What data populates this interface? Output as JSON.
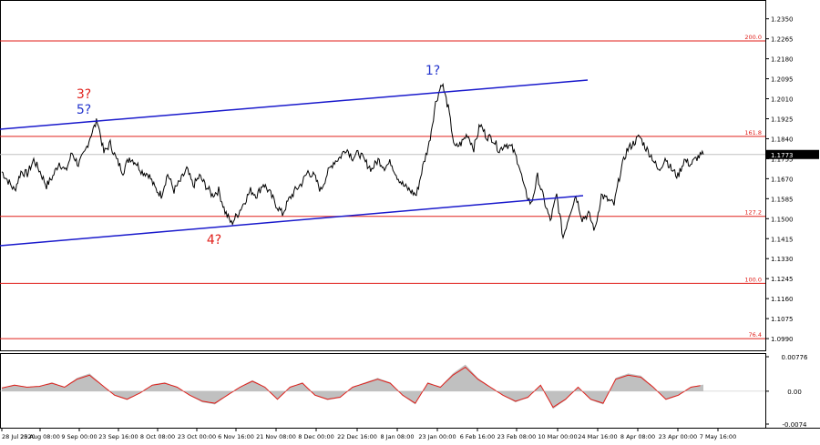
{
  "chart_data": [
    {
      "type": "line",
      "panel": "price",
      "symbol_price": "1.1773",
      "y_ticks": [
        1.235,
        1.2265,
        1.218,
        1.2095,
        1.201,
        1.1925,
        1.184,
        1.1755,
        1.167,
        1.1585,
        1.15,
        1.1415,
        1.133,
        1.1245,
        1.116,
        1.1075,
        1.099
      ],
      "y_tick_labels": [
        "1.2350",
        "1.2265",
        "1.2180",
        "1.2095",
        "1.2010",
        "1.1925",
        "1.1840",
        "1.1755",
        "1.1670",
        "1.1585",
        "1.1500",
        "1.1415",
        "1.1330",
        "1.1245",
        "1.1160",
        "1.1075",
        "1.0990"
      ],
      "ylim": [
        1.094,
        1.243
      ],
      "x_tick_labels": [
        "28 Jul 2020",
        "25 Aug 08:00",
        "9 Sep 00:00",
        "23 Sep 16:00",
        "8 Oct 08:00",
        "23 Oct 00:00",
        "6 Nov 16:00",
        "21 Nov 08:00",
        "8 Dec 00:00",
        "22 Dec 16:00",
        "8 Jan 08:00",
        "23 Jan 00:00",
        "6 Feb 16:00",
        "23 Feb 08:00",
        "10 Mar 00:00",
        "24 Mar 16:00",
        "8 Apr 08:00",
        "23 Apr 00:00",
        "7 May 16:00"
      ],
      "fib_levels": [
        {
          "value": 1.2256,
          "label": "200.0"
        },
        {
          "value": 1.185,
          "label": "161.8"
        },
        {
          "value": 1.151,
          "label": "127.2"
        },
        {
          "value": 1.1225,
          "label": "100.0"
        },
        {
          "value": 1.099,
          "label": "76.4"
        }
      ],
      "price_series": [
        1.17,
        1.166,
        1.162,
        1.17,
        1.169,
        1.175,
        1.17,
        1.164,
        1.168,
        1.174,
        1.17,
        1.178,
        1.173,
        1.178,
        1.186,
        1.192,
        1.178,
        1.182,
        1.175,
        1.17,
        1.176,
        1.174,
        1.17,
        1.169,
        1.163,
        1.16,
        1.169,
        1.162,
        1.166,
        1.171,
        1.164,
        1.168,
        1.164,
        1.16,
        1.162,
        1.153,
        1.148,
        1.152,
        1.157,
        1.162,
        1.16,
        1.165,
        1.161,
        1.156,
        1.152,
        1.158,
        1.162,
        1.165,
        1.17,
        1.168,
        1.162,
        1.169,
        1.174,
        1.176,
        1.18,
        1.176,
        1.178,
        1.174,
        1.171,
        1.175,
        1.172,
        1.174,
        1.168,
        1.164,
        1.162,
        1.16,
        1.172,
        1.182,
        1.199,
        1.208,
        1.197,
        1.18,
        1.182,
        1.186,
        1.18,
        1.19,
        1.185,
        1.184,
        1.179,
        1.182,
        1.18,
        1.174,
        1.162,
        1.156,
        1.168,
        1.158,
        1.149,
        1.16,
        1.142,
        1.152,
        1.16,
        1.15,
        1.152,
        1.145,
        1.16,
        1.158,
        1.156,
        1.17,
        1.179,
        1.182,
        1.185,
        1.18,
        1.176,
        1.17,
        1.176,
        1.171,
        1.168,
        1.175,
        1.173,
        1.176,
        1.1773
      ],
      "price_series_note": "approximate daily-scale trace of EURUSD H4 closes",
      "labels": [
        {
          "text": "3?",
          "color": "#e0201b"
        },
        {
          "text": "5?",
          "color": "#2233cc"
        },
        {
          "text": "1?",
          "color": "#2233cc"
        },
        {
          "text": "4?",
          "color": "#e0201b"
        }
      ],
      "channel_lines": [
        {
          "name": "upper",
          "color": "#1a1acc"
        },
        {
          "name": "lower",
          "color": "#1a1acc"
        }
      ]
    },
    {
      "type": "area",
      "panel": "oscillator",
      "y_tick_labels": [
        "0.00776",
        "0.00",
        "-0.0074"
      ],
      "ylim": [
        -0.0074,
        0.00776
      ],
      "histogram": [
        0.0008,
        0.0015,
        0.001,
        0.0012,
        0.002,
        0.001,
        0.003,
        0.004,
        0.0015,
        -0.001,
        -0.002,
        -0.0005,
        0.0015,
        0.002,
        0.001,
        -0.001,
        -0.0025,
        -0.003,
        -0.001,
        0.001,
        0.0025,
        0.001,
        -0.002,
        0.001,
        0.002,
        -0.001,
        -0.002,
        -0.0015,
        0.001,
        0.002,
        0.003,
        0.002,
        -0.001,
        -0.003,
        0.002,
        0.001,
        0.004,
        0.006,
        0.003,
        0.001,
        -0.001,
        -0.0025,
        -0.0015,
        0.0015,
        -0.004,
        -0.002,
        0.001,
        -0.002,
        -0.003,
        0.003,
        0.004,
        0.0035,
        0.001,
        -0.002,
        -0.001,
        0.001,
        0.0015
      ],
      "colors": {
        "histogram": "#c0c0c0",
        "signal": "#e0201b"
      }
    }
  ],
  "colors": {
    "fib": "#e0201b",
    "grid_line_current": "#c0c0c0",
    "axis": "#000000"
  }
}
